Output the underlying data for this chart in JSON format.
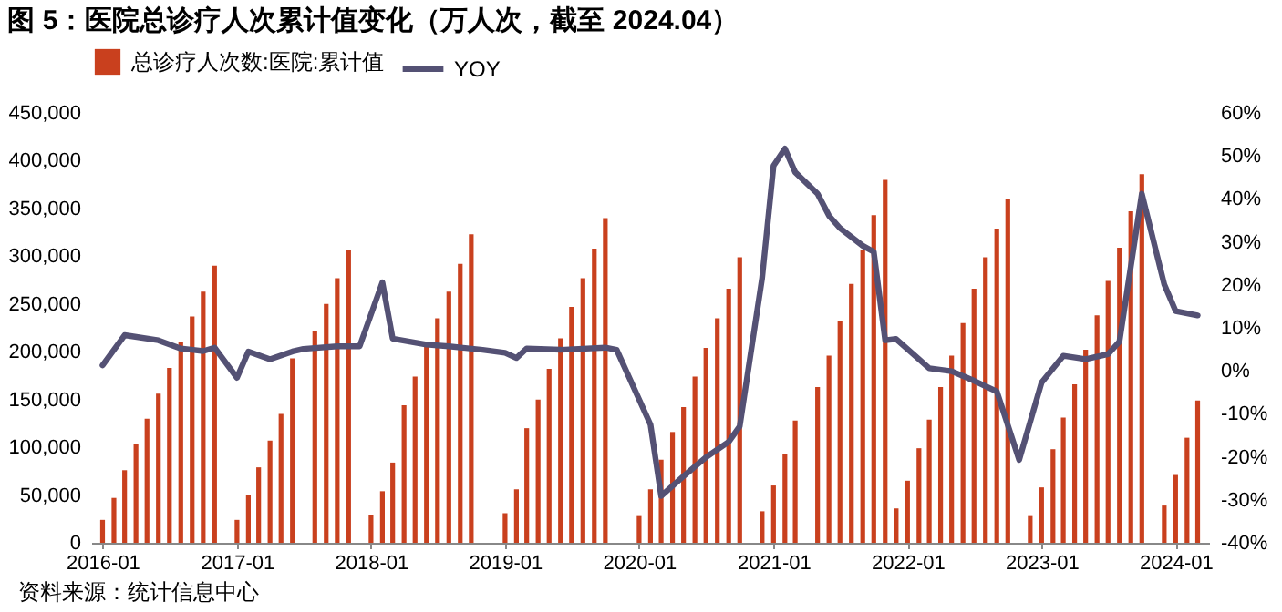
{
  "chart_data": {
    "type": "bar",
    "title": "图 5：医院总诊疗人次累计值变化（万人次，截至 2024.04）",
    "annotations": [
      "资料来源：统计信息中心"
    ],
    "xlim": [
      "2015-12",
      "2024-04"
    ],
    "xticks": [
      "2016-01",
      "2017-01",
      "2018-01",
      "2019-01",
      "2020-01",
      "2021-01",
      "2022-01",
      "2023-01",
      "2024-01"
    ],
    "ylim": [
      0,
      450000
    ],
    "yticks": [
      0,
      {
        "value": 50000,
        "label": "50,000"
      },
      {
        "value": 100000,
        "label": "100,000"
      },
      {
        "value": 150000,
        "label": "150,000"
      },
      {
        "value": 200000,
        "label": "200,000"
      },
      {
        "value": 250000,
        "label": "250,000"
      },
      {
        "value": 300000,
        "label": "300,000"
      },
      {
        "value": 350000,
        "label": "350,000"
      },
      {
        "value": 400000,
        "label": "400,000"
      },
      {
        "value": 450000,
        "label": "450,000"
      }
    ],
    "y2lim": [
      -40,
      60
    ],
    "y2ticks": [
      {
        "value": -40,
        "label": "-40%"
      },
      {
        "value": -30,
        "label": "-30%"
      },
      {
        "value": -20,
        "label": "-20%"
      },
      {
        "value": -10,
        "label": "-10%"
      },
      {
        "value": 0,
        "label": "0%"
      },
      {
        "value": 10,
        "label": "10%"
      },
      {
        "value": 20,
        "label": "20%"
      },
      {
        "value": 30,
        "label": "30%"
      },
      {
        "value": 40,
        "label": "40%"
      },
      {
        "value": 50,
        "label": "50%"
      },
      {
        "value": 60,
        "label": "60%"
      }
    ],
    "legend": "top",
    "grid": false,
    "series": [
      {
        "name": "总诊疗人次数:医院:累计值",
        "color": "#c9401e",
        "x": [
          "2016-01",
          "2016-02",
          "2016-03",
          "2016-04",
          "2016-05",
          "2016-06",
          "2016-07",
          "2016-08",
          "2016-09",
          "2016-10",
          "2016-11",
          "2017-01",
          "2017-02",
          "2017-03",
          "2017-04",
          "2017-05",
          "2017-06",
          "2017-08",
          "2017-09",
          "2017-10",
          "2017-11",
          "2018-01",
          "2018-02",
          "2018-03",
          "2018-04",
          "2018-05",
          "2018-06",
          "2018-07",
          "2018-08",
          "2018-09",
          "2018-10",
          "2019-01",
          "2019-02",
          "2019-03",
          "2019-04",
          "2019-05",
          "2019-06",
          "2019-07",
          "2019-08",
          "2019-09",
          "2019-10",
          "2020-01",
          "2020-02",
          "2020-03",
          "2020-04",
          "2020-05",
          "2020-06",
          "2020-07",
          "2020-08",
          "2020-09",
          "2020-10",
          "2020-12",
          "2021-01",
          "2021-02",
          "2021-03",
          "2021-05",
          "2021-06",
          "2021-07",
          "2021-08",
          "2021-09",
          "2021-10",
          "2021-11",
          "2021-12",
          "2022-01",
          "2022-02",
          "2022-03",
          "2022-04",
          "2022-05",
          "2022-06",
          "2022-07",
          "2022-08",
          "2022-09",
          "2022-10",
          "2022-12",
          "2023-01",
          "2023-02",
          "2023-03",
          "2023-04",
          "2023-05",
          "2023-06",
          "2023-07",
          "2023-08",
          "2023-09",
          "2023-10",
          "2023-12",
          "2024-01",
          "2024-02",
          "2024-03"
        ],
        "values": [
          24000,
          47000,
          76000,
          103000,
          130000,
          156000,
          183000,
          210000,
          237000,
          263000,
          290000,
          24000,
          50000,
          79000,
          107000,
          135000,
          193000,
          222000,
          250000,
          277000,
          306000,
          29000,
          54000,
          84000,
          144000,
          174000,
          205000,
          235000,
          263000,
          292000,
          323000,
          31000,
          56000,
          120000,
          150000,
          182000,
          214000,
          247000,
          277000,
          308000,
          340000,
          28000,
          56000,
          87000,
          116000,
          142000,
          174000,
          204000,
          235000,
          266000,
          299000,
          33000,
          60000,
          93000,
          128000,
          163000,
          196000,
          232000,
          271000,
          307000,
          343000,
          380000,
          36000,
          65000,
          99000,
          129000,
          163000,
          196000,
          230000,
          266000,
          299000,
          329000,
          360000,
          28000,
          58000,
          98000,
          131000,
          166000,
          202000,
          238000,
          274000,
          309000,
          347000,
          386000,
          39000,
          71000,
          110000,
          149000
        ]
      },
      {
        "name": "YOY",
        "type": "line",
        "axis": "y2",
        "color": "#545174",
        "x": [
          "2016-01",
          "2016-03",
          "2016-06",
          "2016-08",
          "2016-10",
          "2016-11",
          "2017-01",
          "2017-02",
          "2017-04",
          "2017-06",
          "2017-07",
          "2017-10",
          "2017-12",
          "2018-02",
          "2018-03",
          "2018-06",
          "2018-08",
          "2018-11",
          "2019-01",
          "2019-02",
          "2019-03",
          "2019-06",
          "2019-10",
          "2019-11",
          "2020-02",
          "2020-03",
          "2020-05",
          "2020-07",
          "2020-09",
          "2020-10",
          "2020-12",
          "2021-01",
          "2021-02",
          "2021-03",
          "2021-05",
          "2021-06",
          "2021-07",
          "2021-09",
          "2021-10",
          "2021-11",
          "2021-12",
          "2022-02",
          "2022-03",
          "2022-05",
          "2022-07",
          "2022-09",
          "2022-11",
          "2023-01",
          "2023-03",
          "2023-05",
          "2023-07",
          "2023-08",
          "2023-10",
          "2023-12",
          "2024-01",
          "2024-03"
        ],
        "values": [
          1.3,
          8.3,
          7.1,
          5.2,
          4.6,
          5.4,
          -1.6,
          4.5,
          2.7,
          4.5,
          5.1,
          5.7,
          5.7,
          20.6,
          7.5,
          6.1,
          5.7,
          4.9,
          4.2,
          3.0,
          5.2,
          4.9,
          5.4,
          4.9,
          -12.5,
          -29.1,
          -24.5,
          -20.1,
          -16.5,
          -12.9,
          21.6,
          47.7,
          51.7,
          46.2,
          41.2,
          36.1,
          33.2,
          29.1,
          27.7,
          7.1,
          7.4,
          2.7,
          0.6,
          -0.1,
          -2.3,
          -4.8,
          -20.7,
          -2.7,
          3.5,
          2.7,
          3.9,
          6.8,
          41.2,
          20.1,
          13.9,
          12.9
        ]
      }
    ]
  }
}
